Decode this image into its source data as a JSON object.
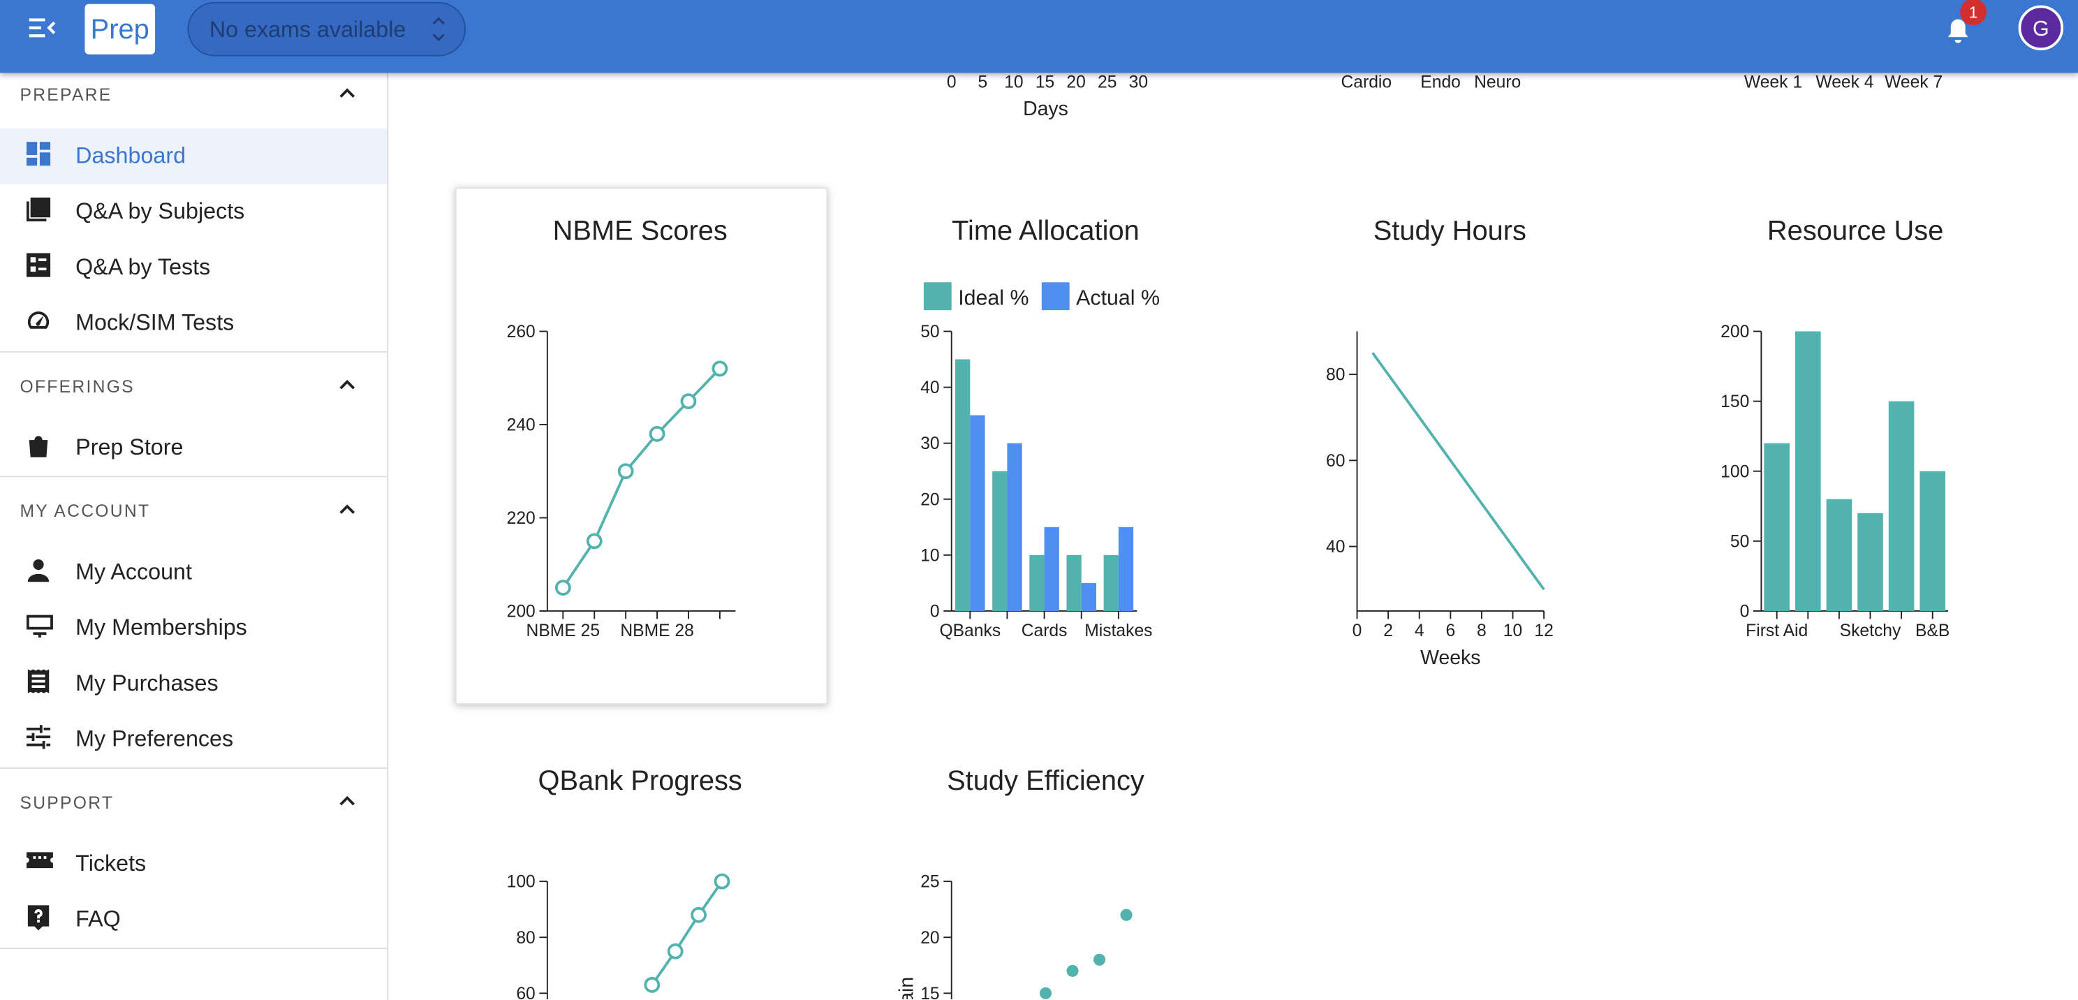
{
  "header": {
    "logo": "Prep",
    "exam_select": "No exams available",
    "notification_count": 1,
    "avatar": "G"
  },
  "sidebar": {
    "sections": [
      {
        "title": "PREPARE",
        "items": [
          "Dashboard",
          "Q&A by Subjects",
          "Q&A by Tests",
          "Mock/SIM Tests"
        ]
      },
      {
        "title": "OFFERINGS",
        "items": [
          "Prep Store"
        ]
      },
      {
        "title": "MY ACCOUNT",
        "items": [
          "My Account",
          "My Memberships",
          "My Purchases",
          "My Preferences"
        ]
      },
      {
        "title": "SUPPORT",
        "items": [
          "Tickets",
          "FAQ"
        ]
      }
    ]
  },
  "partial_axes": [
    {
      "xticks": [
        0,
        5,
        10,
        15,
        20,
        25,
        30
      ],
      "xlim": [
        0,
        30
      ],
      "xlabel": "Days"
    },
    {
      "categories": [
        "Cardio",
        "Endo",
        "Neuro"
      ]
    },
    {
      "categories": [
        "Week 1",
        "Week 4",
        "Week 7"
      ]
    }
  ],
  "chart_data": [
    {
      "type": "line",
      "title": "NBME Scores",
      "categories": [
        "NBME 25",
        null,
        null,
        "NBME 28",
        null,
        null
      ],
      "values": [
        205,
        215,
        230,
        238,
        245,
        252
      ],
      "color": "#52b2ae",
      "marker": "open-circle",
      "ylim": [
        200,
        260
      ],
      "yticks": [
        200,
        220,
        240,
        260
      ]
    },
    {
      "type": "bar",
      "title": "Time Allocation",
      "categories": [
        "QBanks",
        null,
        "Cards",
        null,
        "Mistakes"
      ],
      "series": [
        {
          "name": "Ideal %",
          "color": "#52b2ae",
          "values": [
            45,
            25,
            10,
            10,
            10
          ]
        },
        {
          "name": "Actual %",
          "color": "#4f8ff0",
          "values": [
            35,
            30,
            15,
            5,
            15
          ]
        }
      ],
      "legend": "top",
      "ylim": [
        0,
        50
      ],
      "yticks": [
        0,
        10,
        20,
        30,
        40,
        50
      ]
    },
    {
      "type": "line",
      "title": "Study Hours",
      "x": [
        1,
        2,
        3,
        4,
        5,
        6,
        7,
        8,
        9,
        10,
        11,
        12
      ],
      "values": [
        85,
        80,
        75,
        70,
        65,
        60,
        55,
        50,
        45,
        40,
        35,
        30
      ],
      "color": "#52b2ae",
      "xlim": [
        0,
        12
      ],
      "xticks": [
        0,
        2,
        4,
        6,
        8,
        10,
        12
      ],
      "xlabel": "Weeks",
      "ylim": [
        25,
        90
      ],
      "yticks": [
        40,
        60,
        80
      ]
    },
    {
      "type": "bar",
      "title": "Resource Use",
      "categories": [
        "First Aid",
        null,
        null,
        "Sketchy",
        null,
        "B&B"
      ],
      "values": [
        120,
        200,
        80,
        70,
        150,
        100
      ],
      "color": "#52b2ae",
      "ylim": [
        0,
        200
      ],
      "yticks": [
        0,
        50,
        100,
        150,
        200
      ]
    },
    {
      "type": "line",
      "title": "QBank Progress",
      "values": [
        63,
        75,
        88,
        100
      ],
      "color": "#52b2ae",
      "marker": "open-circle",
      "ylim": [
        0,
        100
      ],
      "yticks": [
        60,
        80,
        100
      ]
    },
    {
      "type": "scatter",
      "title": "Study Efficiency",
      "ylabel": "ain",
      "values": [
        15,
        17,
        18,
        22
      ],
      "color": "#52b2ae",
      "ylim": [
        0,
        25
      ],
      "yticks": [
        15,
        20,
        25
      ]
    }
  ]
}
